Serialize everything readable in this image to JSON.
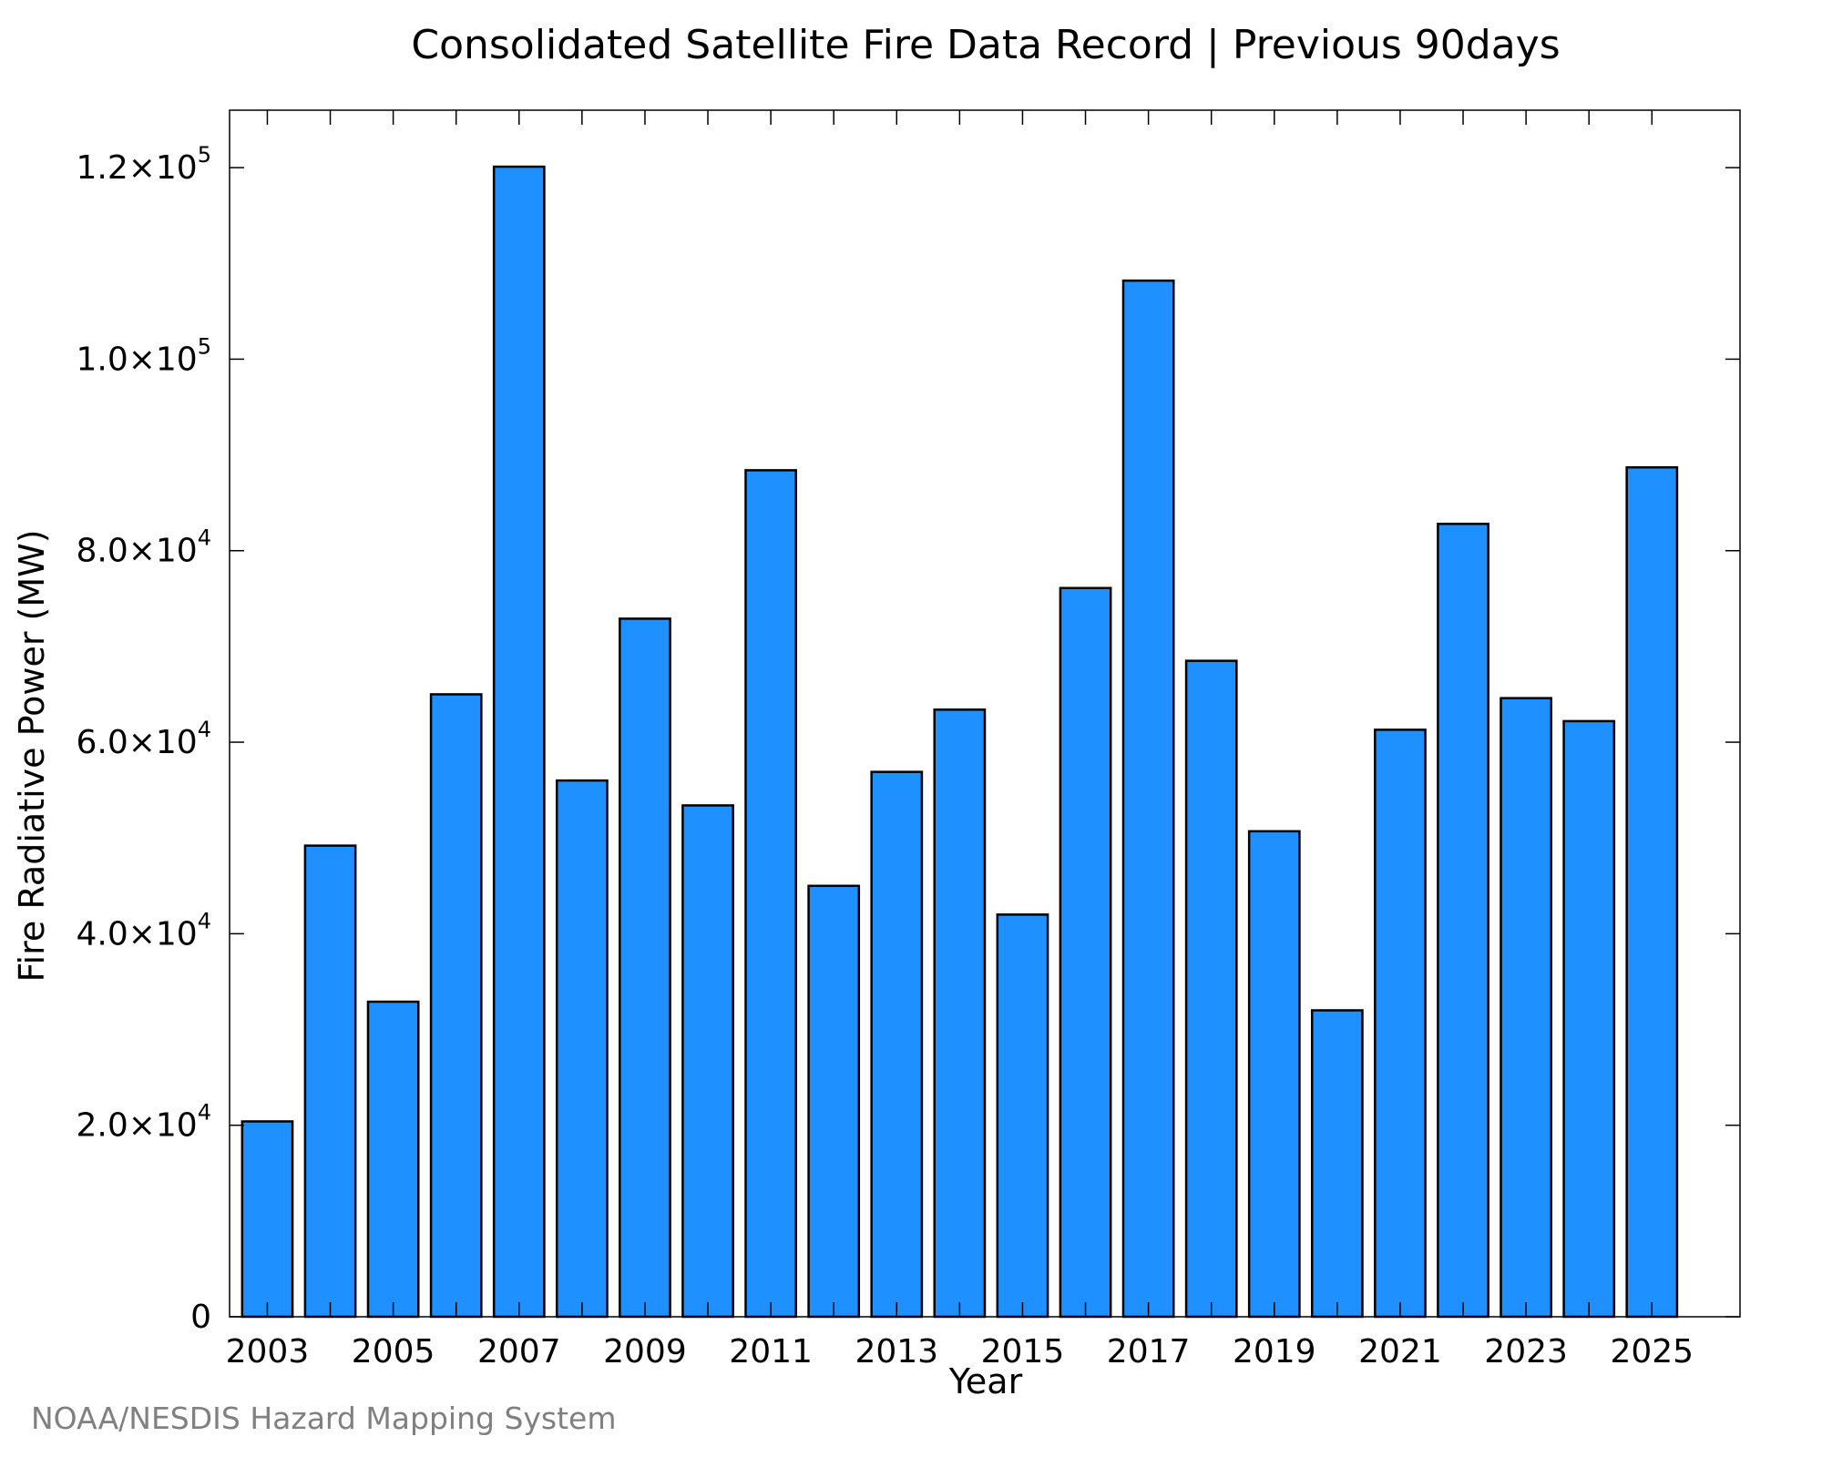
{
  "chart_data": {
    "type": "bar",
    "title": "Consolidated Satellite Fire Data Record | Previous 90days",
    "xlabel": "Year",
    "ylabel": "Fire Radiative Power (MW)",
    "categories": [
      "2003",
      "2004",
      "2005",
      "2006",
      "2007",
      "2008",
      "2009",
      "2010",
      "2011",
      "2012",
      "2013",
      "2014",
      "2015",
      "2016",
      "2017",
      "2018",
      "2019",
      "2020",
      "2021",
      "2022",
      "2023",
      "2024",
      "2025"
    ],
    "values": [
      20400,
      49200,
      32900,
      65000,
      120100,
      56000,
      72900,
      53400,
      88400,
      45000,
      56900,
      63400,
      42000,
      76100,
      108200,
      68500,
      50700,
      32000,
      61300,
      82800,
      64600,
      62200,
      88700
    ],
    "ylim": [
      0,
      126000
    ],
    "x_tick_labels": [
      "2003",
      "2005",
      "2007",
      "2009",
      "2011",
      "2013",
      "2015",
      "2017",
      "2019",
      "2021",
      "2023",
      "2025"
    ],
    "y_ticks": [
      {
        "value": 0,
        "mantissa": "0",
        "exponent": ""
      },
      {
        "value": 20000,
        "mantissa": "2.0×10",
        "exponent": "4"
      },
      {
        "value": 40000,
        "mantissa": "4.0×10",
        "exponent": "4"
      },
      {
        "value": 60000,
        "mantissa": "6.0×10",
        "exponent": "4"
      },
      {
        "value": 80000,
        "mantissa": "8.0×10",
        "exponent": "4"
      },
      {
        "value": 100000,
        "mantissa": "1.0×10",
        "exponent": "5"
      },
      {
        "value": 120000,
        "mantissa": "1.2×10",
        "exponent": "5"
      }
    ],
    "bar_color": "#1e90ff",
    "bar_edge_color": "#000000",
    "grid": false,
    "legend": "none"
  },
  "credit": "NOAA/NESDIS Hazard Mapping System"
}
